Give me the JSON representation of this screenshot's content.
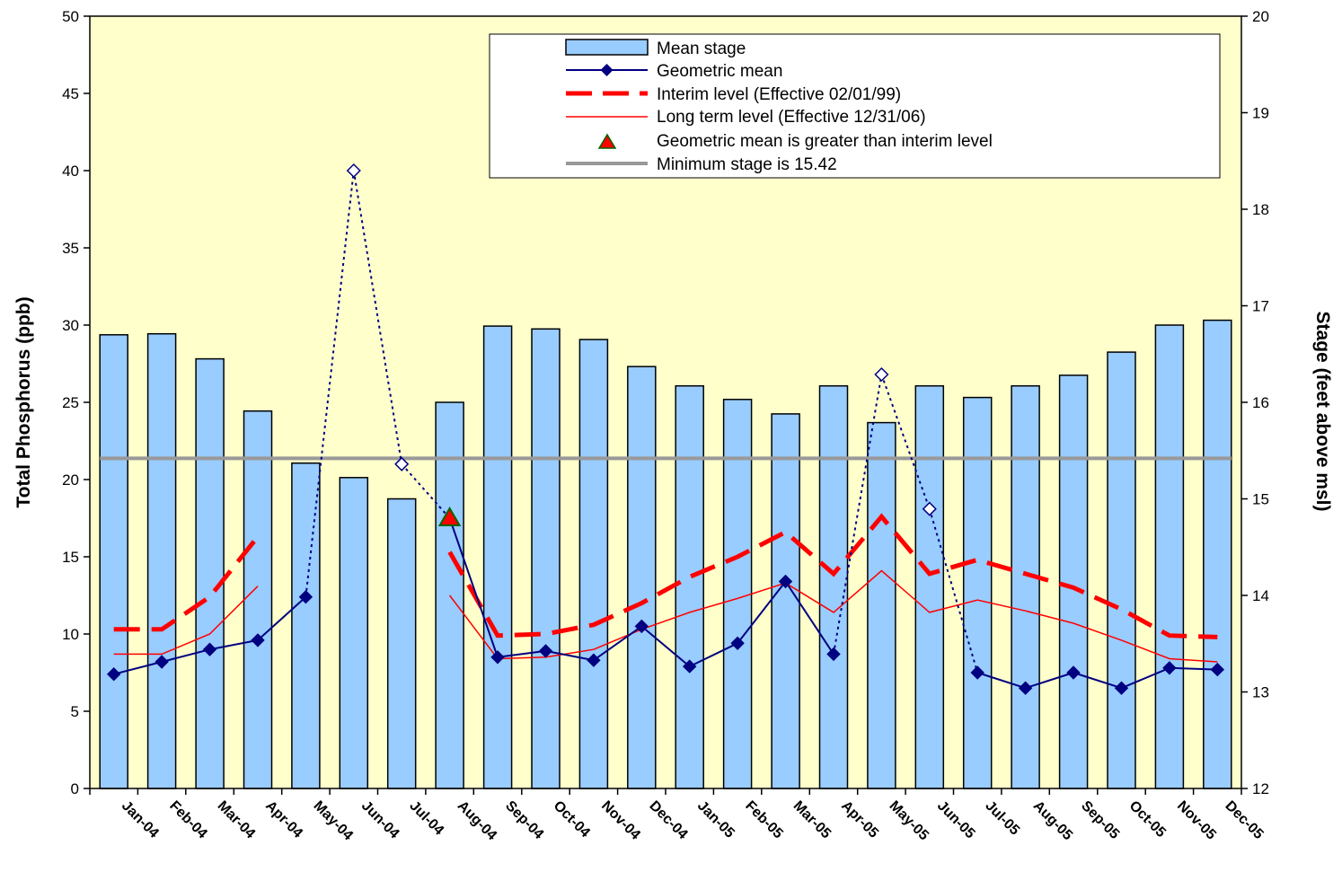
{
  "chart_data": {
    "type": "bar",
    "categories": [
      "Jan-04",
      "Feb-04",
      "Mar-04",
      "Apr-04",
      "May-04",
      "Jun-04",
      "Jul-04",
      "Aug-04",
      "Sep-04",
      "Oct-04",
      "Nov-04",
      "Dec-04",
      "Jan-05",
      "Feb-05",
      "Mar-05",
      "Apr-05",
      "May-05",
      "Jun-05",
      "Jul-05",
      "Aug-05",
      "Sep-05",
      "Oct-05",
      "Nov-05",
      "Dec-05"
    ],
    "ylabel": "Total Phosphorus (ppb)",
    "y2label": "Stage (feet above msl)",
    "ylim": [
      0,
      50
    ],
    "y2lim": [
      12,
      20
    ],
    "yticks": [
      0,
      5,
      10,
      15,
      20,
      25,
      30,
      35,
      40,
      45,
      50
    ],
    "y2ticks": [
      12,
      13,
      14,
      15,
      16,
      17,
      18,
      19,
      20
    ],
    "grid": false,
    "legend_position": "top-right",
    "background_color": "#FFFFCC",
    "series": [
      {
        "name": "Mean stage",
        "kind": "bar",
        "axis": "right",
        "color": "#99CCFF",
        "values": [
          16.7,
          16.71,
          16.45,
          15.91,
          15.37,
          15.22,
          15.0,
          16.0,
          16.79,
          16.76,
          16.65,
          16.37,
          16.17,
          16.03,
          15.88,
          16.17,
          15.79,
          16.17,
          16.05,
          16.17,
          16.28,
          16.52,
          16.8,
          16.85
        ]
      },
      {
        "name": "Geometric mean",
        "kind": "line",
        "axis": "left",
        "color": "#000080",
        "values": [
          7.4,
          8.2,
          9.0,
          9.6,
          12.4,
          40.0,
          21.0,
          17.5,
          8.5,
          8.9,
          8.3,
          10.5,
          7.9,
          9.4,
          13.4,
          8.7,
          26.8,
          18.1,
          7.5,
          6.5,
          7.5,
          6.5,
          7.8,
          7.7
        ],
        "estimated_flags": [
          false,
          false,
          false,
          false,
          false,
          true,
          true,
          false,
          false,
          false,
          false,
          false,
          false,
          false,
          false,
          false,
          true,
          true,
          false,
          false,
          false,
          false,
          false,
          false
        ]
      },
      {
        "name": "Interim level (Effective 02/01/99)",
        "kind": "line",
        "axis": "left",
        "color": "#FF0000",
        "segments": [
          {
            "x": [
              0,
              1,
              2,
              3
            ],
            "values": [
              10.3,
              10.3,
              12.4,
              16.3
            ]
          },
          {
            "x": [
              7,
              8,
              9,
              10,
              11,
              12,
              13,
              14,
              15,
              16,
              17,
              18,
              19,
              20,
              21,
              22,
              23
            ],
            "values": [
              15.3,
              9.9,
              10.0,
              10.6,
              12.0,
              13.7,
              15.0,
              16.6,
              13.9,
              17.6,
              13.9,
              14.8,
              13.9,
              13.0,
              11.6,
              9.9,
              9.8
            ]
          }
        ]
      },
      {
        "name": "Long term level (Effective 12/31/06)",
        "kind": "line",
        "axis": "left",
        "color": "#FF0000",
        "segments": [
          {
            "x": [
              0,
              1,
              2,
              3
            ],
            "values": [
              8.7,
              8.7,
              10.0,
              13.1
            ]
          },
          {
            "x": [
              7,
              8,
              9,
              10,
              11,
              12,
              13,
              14,
              15,
              16,
              17,
              18,
              19,
              20,
              21,
              22,
              23
            ],
            "values": [
              12.5,
              8.4,
              8.5,
              9.0,
              10.3,
              11.4,
              12.3,
              13.3,
              11.4,
              14.1,
              11.4,
              12.2,
              11.5,
              10.7,
              9.6,
              8.4,
              8.2
            ]
          }
        ]
      },
      {
        "name": "Geometric mean is greater than interim level",
        "kind": "marker",
        "axis": "left",
        "color": "#FF0000",
        "points": [
          {
            "x": 7,
            "value": 17.5
          }
        ]
      },
      {
        "name": "Minimum stage is 15.42",
        "kind": "hline",
        "axis": "right",
        "color": "#999999",
        "value": 15.42
      }
    ]
  }
}
